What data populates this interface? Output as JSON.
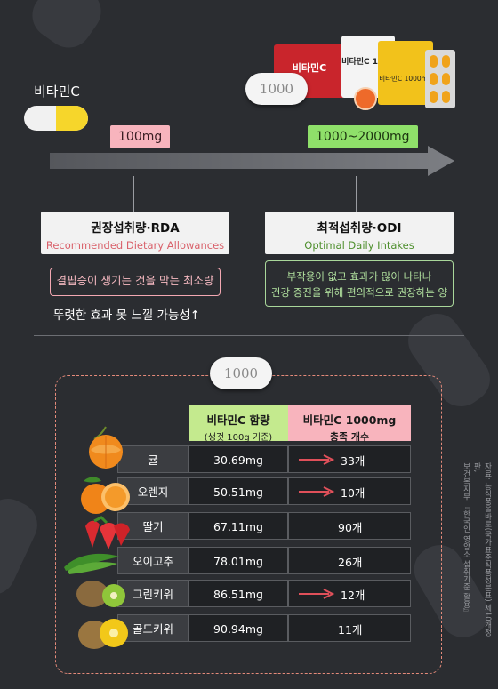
{
  "header": {
    "vitamin_label": "비타민C",
    "pill_text": "1000",
    "badge_low": "100mg",
    "badge_high": "1000~2000mg",
    "product_text_1": "비타민C",
    "product_text_2": "비타민C 1000",
    "product_text_3": "비타민C 1000mg"
  },
  "rda": {
    "title": "권장섭취량·RDA",
    "subtitle": "Recommended Dietary Allowances",
    "desc": "결핍증이 생기는 것을 막는 최소량",
    "note": "뚜렷한 효과 못 느낄 가능성↑"
  },
  "odi": {
    "title": "최적섭취량·ODI",
    "subtitle": "Optimal Daily Intakes",
    "desc_line1": "부작용이 없고 효과가 많이 나타나",
    "desc_line2": "건강 증진을 위해 편의적으로 권장하는 양"
  },
  "section2": {
    "pill_text": "1000"
  },
  "table": {
    "col1_title": "비타민C 함량",
    "col1_sub": "(생것 100g 기준)",
    "col2_title": "비타민C 1000mg",
    "col2_sub": "충족 개수",
    "rows": [
      {
        "name": "귤",
        "content": "30.69mg",
        "count": "33개",
        "arrow": true
      },
      {
        "name": "오렌지",
        "content": "50.51mg",
        "count": "10개",
        "arrow": true
      },
      {
        "name": "딸기",
        "content": "67.11mg",
        "count": "90개",
        "arrow": false
      },
      {
        "name": "오이고추",
        "content": "78.01mg",
        "count": "26개",
        "arrow": false
      },
      {
        "name": "그린키위",
        "content": "86.51mg",
        "count": "12개",
        "arrow": true
      },
      {
        "name": "골드키위",
        "content": "90.94mg",
        "count": "11개",
        "arrow": false
      }
    ]
  },
  "source": {
    "line1": "자료: 농식품올바로(국가표준식품성분표) 제10개정판,",
    "line2": "보건복지부 『한국인 영양소 섭취기준 활용』"
  },
  "colors": {
    "background": "#2b2d31",
    "pink": "#f8b4bd",
    "green": "#8fe06a",
    "red_arrow": "#e0505a"
  }
}
